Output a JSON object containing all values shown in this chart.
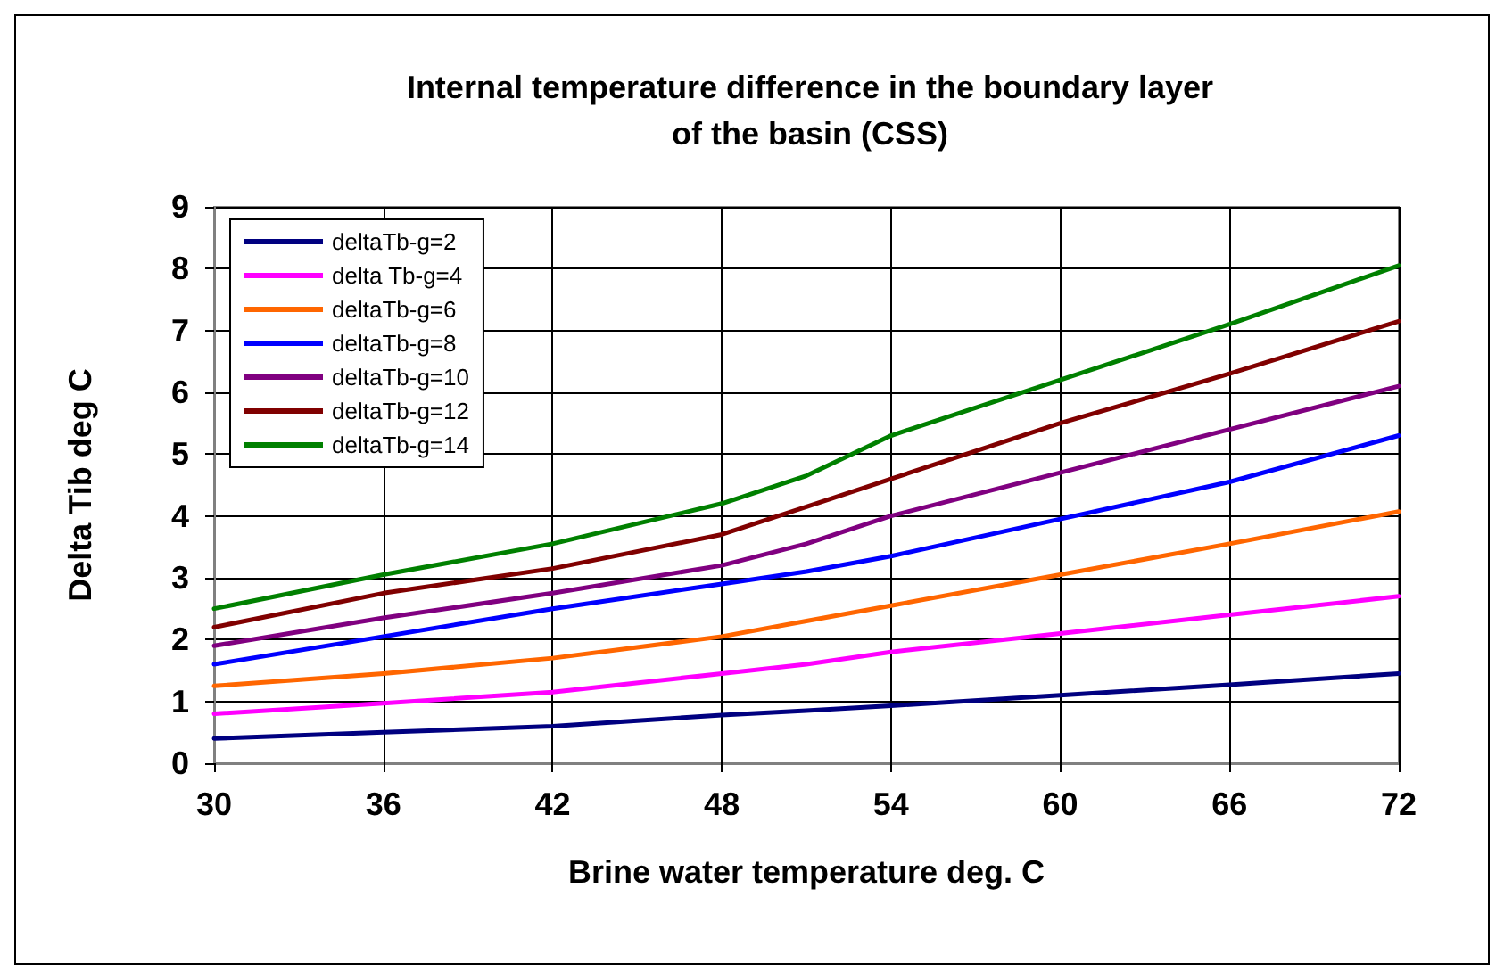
{
  "chart_data": {
    "type": "line",
    "title": "Internal temperature difference in the boundary layer\nof the basin (CSS)",
    "xlabel": "Brine water temperature deg. C",
    "ylabel": "Delta Tib deg C",
    "x": [
      30,
      36,
      42,
      48,
      51,
      54,
      60,
      66,
      72
    ],
    "series": [
      {
        "name": "deltaTb-g=2",
        "color": "#000080",
        "values": [
          0.4,
          0.5,
          0.6,
          0.78,
          0.85,
          0.93,
          1.1,
          1.27,
          1.45
        ]
      },
      {
        "name": "delta Tb-g=4",
        "color": "#ff00ff",
        "values": [
          0.8,
          0.97,
          1.15,
          1.45,
          1.6,
          1.8,
          2.1,
          2.4,
          2.7
        ]
      },
      {
        "name": "deltaTb-g=6",
        "color": "#ff6600",
        "values": [
          1.25,
          1.45,
          1.7,
          2.05,
          2.3,
          2.55,
          3.05,
          3.55,
          4.07
        ]
      },
      {
        "name": "deltaTb-g=8",
        "color": "#0000ff",
        "values": [
          1.6,
          2.05,
          2.5,
          2.9,
          3.1,
          3.35,
          3.95,
          4.55,
          5.3
        ]
      },
      {
        "name": "deltaTb-g=10",
        "color": "#800080",
        "values": [
          1.9,
          2.35,
          2.75,
          3.2,
          3.55,
          4.0,
          4.7,
          5.4,
          6.1
        ]
      },
      {
        "name": "deltaTb-g=12",
        "color": "#800000",
        "values": [
          2.2,
          2.75,
          3.15,
          3.7,
          4.15,
          4.6,
          5.5,
          6.3,
          7.15
        ]
      },
      {
        "name": "deltaTb-g=14",
        "color": "#008000",
        "values": [
          2.5,
          3.05,
          3.55,
          4.2,
          4.65,
          5.3,
          6.2,
          7.1,
          8.05
        ]
      }
    ],
    "xlim": [
      30,
      72
    ],
    "xticks": [
      30,
      36,
      42,
      48,
      54,
      60,
      66,
      72
    ],
    "ylim": [
      0,
      9
    ],
    "yticks": [
      0,
      1,
      2,
      3,
      4,
      5,
      6,
      7,
      8,
      9
    ],
    "grid": true,
    "legend": "top left",
    "marker": "none",
    "line_style": "solid"
  }
}
